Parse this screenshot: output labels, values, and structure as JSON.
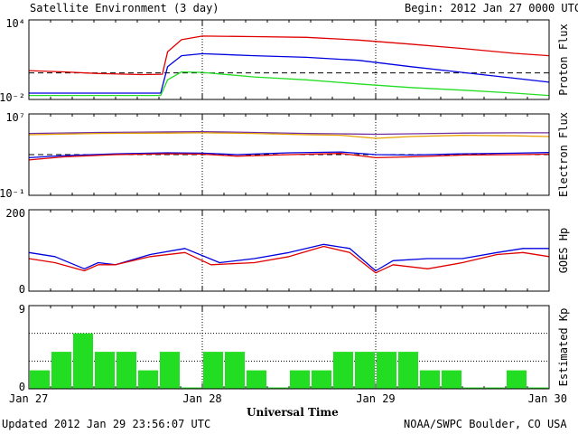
{
  "header": {
    "title": "Satellite Environment (3 day)",
    "begin": "Begin:  2012 Jan 27 0000 UTC"
  },
  "footer": {
    "updated": "Updated 2012 Jan 29 23:56:07 UTC",
    "credit": "NOAA/SWPC Boulder, CO USA"
  },
  "x_axis": {
    "title": "Universal Time",
    "tick_labels": [
      "Jan 27",
      "Jan 28",
      "Jan 29",
      "Jan 30"
    ]
  },
  "colors": {
    "red": "#e00000",
    "blue": "#0000e0",
    "green": "#22dd22",
    "orange": "#e8a000",
    "purple": "#7030a0"
  },
  "chart_data": [
    {
      "type": "line",
      "ylabel": "Proton Flux",
      "y_scale": "log",
      "ylim": [
        0.01,
        10000
      ],
      "y_tick_labels": [
        "10⁴",
        "10⁻²"
      ],
      "x_units": "day",
      "reference_line": 1,
      "series": [
        {
          "color": "red",
          "x": [
            0,
            0.2,
            0.4,
            0.65,
            0.77,
            0.8,
            0.88,
            1.0,
            1.3,
            1.6,
            1.9,
            2.2,
            2.5,
            2.8,
            3.0
          ],
          "y": [
            1.5,
            1.2,
            0.9,
            0.75,
            0.8,
            40,
            320,
            600,
            550,
            480,
            300,
            150,
            70,
            30,
            20
          ]
        },
        {
          "color": "blue",
          "x": [
            0,
            0.3,
            0.6,
            0.76,
            0.8,
            0.88,
            1.0,
            1.3,
            1.6,
            1.9,
            2.2,
            2.5,
            2.8,
            3.0
          ],
          "y": [
            0.03,
            0.03,
            0.03,
            0.03,
            3,
            20,
            28,
            20,
            15,
            9,
            3,
            1.1,
            0.4,
            0.2
          ]
        },
        {
          "color": "green",
          "x": [
            0,
            0.3,
            0.6,
            0.76,
            0.8,
            0.88,
            1.0,
            1.3,
            1.6,
            1.9,
            2.2,
            2.5,
            2.8,
            3.0
          ],
          "y": [
            0.02,
            0.02,
            0.02,
            0.02,
            0.3,
            1.2,
            1.1,
            0.5,
            0.3,
            0.15,
            0.08,
            0.05,
            0.03,
            0.02
          ]
        }
      ]
    },
    {
      "type": "line",
      "ylabel": "Electron Flux",
      "y_scale": "log",
      "ylim": [
        0.1,
        10000000
      ],
      "y_tick_labels": [
        "10⁷",
        "10⁻¹"
      ],
      "x_units": "day",
      "reference_line": 1000,
      "series": [
        {
          "color": "purple",
          "x": [
            0,
            0.4,
            0.8,
            1.0,
            1.3,
            1.6,
            1.8,
            2.0,
            2.2,
            2.5,
            2.8,
            3.0
          ],
          "y": [
            120000,
            150000,
            170000,
            180000,
            150000,
            120000,
            110000,
            100000,
            110000,
            130000,
            140000,
            140000
          ]
        },
        {
          "color": "orange",
          "x": [
            0,
            0.4,
            0.8,
            1.0,
            1.3,
            1.6,
            1.8,
            2.0,
            2.2,
            2.5,
            2.8,
            3.0
          ],
          "y": [
            90000,
            120000,
            130000,
            140000,
            120000,
            90000,
            80000,
            40000,
            60000,
            80000,
            70000,
            60000
          ]
        },
        {
          "color": "blue",
          "x": [
            0,
            0.2,
            0.5,
            0.8,
            1.0,
            1.2,
            1.5,
            1.8,
            2.0,
            2.2,
            2.5,
            2.8,
            3.0
          ],
          "y": [
            500,
            800,
            1200,
            1500,
            1400,
            1000,
            1500,
            1800,
            1000,
            900,
            1200,
            1400,
            1600
          ]
        },
        {
          "color": "red",
          "x": [
            0,
            0.2,
            0.5,
            0.8,
            1.0,
            1.2,
            1.5,
            1.8,
            2.0,
            2.2,
            2.5,
            2.8,
            3.0
          ],
          "y": [
            300,
            600,
            1000,
            1200,
            1100,
            700,
            1000,
            1300,
            500,
            600,
            900,
            1000,
            1100
          ]
        }
      ]
    },
    {
      "type": "line",
      "ylabel": "GOES Hp",
      "ylim": [
        0,
        200
      ],
      "y_tick_labels": [
        "200",
        "0"
      ],
      "x_units": "day",
      "series": [
        {
          "color": "blue",
          "x": [
            0,
            0.15,
            0.32,
            0.4,
            0.5,
            0.7,
            0.9,
            1.1,
            1.3,
            1.5,
            1.7,
            1.85,
            2.0,
            2.1,
            2.3,
            2.5,
            2.7,
            2.85,
            3.0
          ],
          "y": [
            95,
            85,
            55,
            70,
            65,
            90,
            105,
            70,
            80,
            95,
            115,
            105,
            50,
            75,
            80,
            80,
            95,
            105,
            105
          ]
        },
        {
          "color": "red",
          "x": [
            0,
            0.15,
            0.32,
            0.4,
            0.5,
            0.7,
            0.9,
            1.05,
            1.3,
            1.5,
            1.7,
            1.85,
            2.0,
            2.1,
            2.3,
            2.5,
            2.7,
            2.85,
            3.0
          ],
          "y": [
            80,
            70,
            50,
            65,
            65,
            85,
            95,
            65,
            70,
            85,
            110,
            95,
            45,
            65,
            55,
            70,
            90,
            95,
            85
          ]
        }
      ]
    },
    {
      "type": "bar",
      "ylabel": "Estimated Kp",
      "ylim": [
        0,
        9
      ],
      "y_tick_labels": [
        "9",
        "0"
      ],
      "bar_color": "green",
      "bar_width_hours": 3,
      "values": [
        2,
        4,
        6,
        4,
        4,
        2,
        4,
        0,
        4,
        4,
        2,
        0,
        2,
        2,
        4,
        4,
        4,
        4,
        2,
        2,
        0,
        0,
        2,
        0
      ]
    }
  ]
}
